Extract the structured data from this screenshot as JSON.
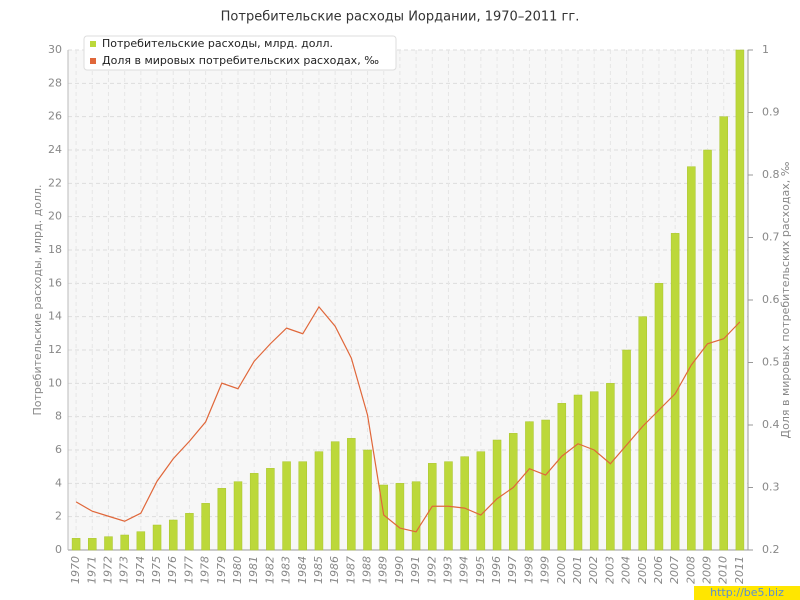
{
  "chart_data": {
    "type": "bar-line",
    "title": "Потребительские расходы Иордании, 1970–2011 гг.",
    "y_label": "Потребительские расходы, млрд. долл.",
    "y2_label": "Доля в мировых потребительских расходах, ‰",
    "watermark": "http://be5.biz",
    "categories": [
      "1970",
      "1971",
      "1972",
      "1973",
      "1974",
      "1975",
      "1976",
      "1977",
      "1978",
      "1979",
      "1980",
      "1981",
      "1982",
      "1983",
      "1984",
      "1985",
      "1986",
      "1987",
      "1988",
      "1989",
      "1990",
      "1991",
      "1992",
      "1993",
      "1994",
      "1995",
      "1996",
      "1997",
      "1998",
      "1999",
      "2000",
      "2001",
      "2002",
      "2003",
      "2004",
      "2005",
      "2006",
      "2007",
      "2008",
      "2009",
      "2010",
      "2011"
    ],
    "series": [
      {
        "name": "Потребительские расходы, млрд. долл.",
        "type": "bar",
        "color": "#bcd83a",
        "values": [
          0.7,
          0.7,
          0.8,
          0.9,
          1.1,
          1.5,
          1.8,
          2.2,
          2.8,
          3.7,
          4.1,
          4.6,
          4.9,
          5.3,
          5.3,
          5.9,
          6.5,
          6.7,
          6.0,
          3.9,
          4.0,
          4.1,
          5.2,
          5.3,
          5.6,
          5.9,
          6.6,
          7.0,
          7.7,
          7.8,
          8.8,
          9.3,
          9.5,
          10.0,
          12.0,
          14.0,
          16.0,
          19.0,
          23.0,
          24.0,
          26.0,
          30.0
        ]
      },
      {
        "name": "Доля в мировых потребительских расходах, ‰",
        "type": "line",
        "axis": "y2",
        "color": "#e0673a",
        "values": [
          0.277,
          0.262,
          0.254,
          0.246,
          0.259,
          0.31,
          0.346,
          0.374,
          0.405,
          0.467,
          0.458,
          0.502,
          0.53,
          0.555,
          0.546,
          0.589,
          0.558,
          0.507,
          0.416,
          0.256,
          0.235,
          0.229,
          0.27,
          0.27,
          0.267,
          0.256,
          0.282,
          0.3,
          0.33,
          0.32,
          0.35,
          0.37,
          0.36,
          0.338,
          0.368,
          0.398,
          0.424,
          0.45,
          0.496,
          0.53,
          0.538,
          0.565
        ]
      }
    ],
    "ylim": [
      0,
      30
    ],
    "yticks": [
      0,
      2,
      4,
      6,
      8,
      10,
      12,
      14,
      16,
      18,
      20,
      22,
      24,
      26,
      28,
      30
    ],
    "y2lim": [
      0.2,
      1
    ],
    "y2ticks": [
      0.2,
      0.3,
      0.4,
      0.5,
      0.6,
      0.7,
      0.8,
      0.9,
      1
    ],
    "grid": true,
    "legend": "top-left"
  }
}
